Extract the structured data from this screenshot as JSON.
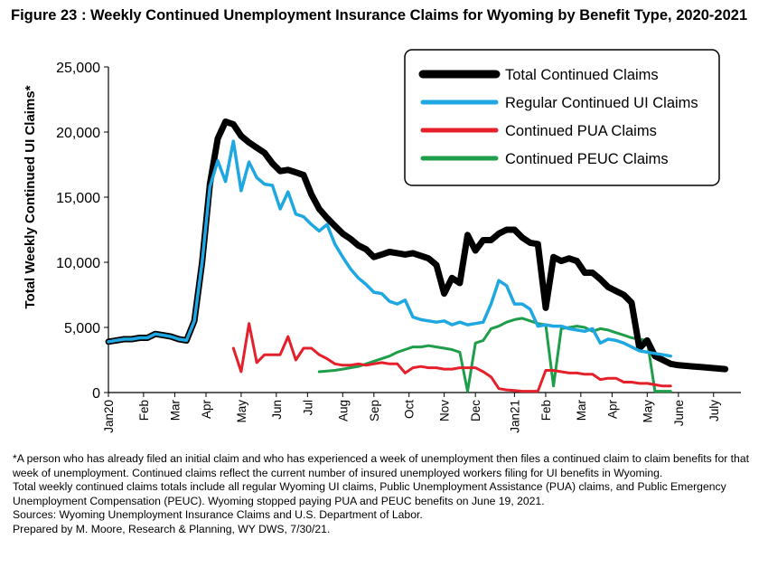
{
  "figure_title": "Figure 23 : Weekly Continued Unemployment Insurance Claims for Wyoming by Benefit Type, 2020-2021",
  "footnotes": [
    "*A person who has already filed an initial claim and who has experienced a week of unemployment then files a continued claim to claim benefits for that week of unemployment. Continued claims reflect the current number of insured unemployed workers filing for UI benefits in Wyoming.",
    "Total weekly continued claims totals include all regular Wyoming UI claims, Public Unemployment Assistance (PUA) claims, and Public Emergency Unemployment Compensation (PEUC). Wyoming stopped paying PUA and PEUC benefits on June 19, 2021.",
    "Sources: Wyoming Unemployment Insurance Claims and U.S. Department of Labor.",
    "Prepared by M. Moore, Research & Planning, WY DWS, 7/30/21."
  ],
  "chart_data": {
    "type": "line",
    "title": "Figure 23 : Weekly Continued Unemployment Insurance Claims for Wyoming by Benefit Type, 2020-2021",
    "xlabel": "",
    "ylabel": "Total Weekly Continued UI Claims*",
    "ylim": [
      0,
      25000
    ],
    "yticks": [
      0,
      5000,
      10000,
      15000,
      20000,
      25000
    ],
    "ytick_labels": [
      "0",
      "5,000",
      "10,000",
      "15,000",
      "20,000",
      "25,000"
    ],
    "x_start_label": "week 1 = first week of Jan 2020",
    "xlim_weeks": [
      1,
      82
    ],
    "xticks": [
      {
        "label": "Jan20",
        "week": 1
      },
      {
        "label": "Feb",
        "week": 5.5
      },
      {
        "label": "Mar",
        "week": 9.5
      },
      {
        "label": "Apr",
        "week": 13.5
      },
      {
        "label": "May",
        "week": 18
      },
      {
        "label": "Jun",
        "week": 22.5
      },
      {
        "label": "Jul",
        "week": 26.5
      },
      {
        "label": "Aug",
        "week": 31
      },
      {
        "label": "Sep",
        "week": 35
      },
      {
        "label": "Oct",
        "week": 39.5
      },
      {
        "label": "Nov",
        "week": 44
      },
      {
        "label": "Dec",
        "week": 48
      },
      {
        "label": "Jan21",
        "week": 53
      },
      {
        "label": "Feb",
        "week": 57
      },
      {
        "label": "Mar",
        "week": 61.5
      },
      {
        "label": "Apr",
        "week": 65.5
      },
      {
        "label": "May",
        "week": 70
      },
      {
        "label": "June",
        "week": 74
      },
      {
        "label": "July",
        "week": 78.5
      }
    ],
    "grid": false,
    "legend_position": "top-right",
    "series": [
      {
        "name": "Total Continued Claims",
        "color": "#000000",
        "width": 7,
        "x": [
          1,
          2,
          3,
          4,
          5,
          6,
          7,
          8,
          9,
          10,
          11,
          12,
          13,
          14,
          15,
          16,
          17,
          18,
          19,
          20,
          21,
          22,
          23,
          24,
          25,
          26,
          27,
          28,
          29,
          30,
          31,
          32,
          33,
          34,
          35,
          36,
          37,
          38,
          39,
          40,
          41,
          42,
          43,
          44,
          45,
          46,
          47,
          48,
          49,
          50,
          51,
          52,
          53,
          54,
          55,
          56,
          57,
          58,
          59,
          60,
          61,
          62,
          63,
          64,
          65,
          66,
          67,
          68,
          69,
          70,
          71,
          72,
          73,
          74,
          75,
          76,
          77,
          78,
          79,
          80
        ],
        "y": [
          3900,
          4000,
          4100,
          4100,
          4200,
          4200,
          4500,
          4400,
          4300,
          4100,
          4000,
          5500,
          10000,
          16000,
          19500,
          20800,
          20600,
          19700,
          19200,
          18800,
          18400,
          17600,
          17000,
          17100,
          16900,
          16700,
          15200,
          14100,
          13400,
          12800,
          12200,
          11800,
          11300,
          11000,
          10400,
          10600,
          10800,
          10700,
          10600,
          10700,
          10500,
          10300,
          9800,
          7600,
          8800,
          8400,
          12100,
          10900,
          11700,
          11700,
          12200,
          12500,
          12500,
          11900,
          11500,
          11400,
          6500,
          10400,
          10100,
          10300,
          10100,
          9200,
          9200,
          8700,
          8100,
          7800,
          7500,
          6900,
          3400,
          4000,
          2800,
          2500,
          2200,
          2100,
          2050,
          2000,
          1950,
          1900,
          1850,
          1800
        ]
      },
      {
        "name": "Regular Continued UI Claims",
        "color": "#1ea7e1",
        "width": 3.5,
        "x": [
          1,
          2,
          3,
          4,
          5,
          6,
          7,
          8,
          9,
          10,
          11,
          12,
          13,
          14,
          15,
          16,
          17,
          18,
          19,
          20,
          21,
          22,
          23,
          24,
          25,
          26,
          27,
          28,
          29,
          30,
          31,
          32,
          33,
          34,
          35,
          36,
          37,
          38,
          39,
          40,
          41,
          42,
          43,
          44,
          45,
          46,
          47,
          48,
          49,
          50,
          51,
          52,
          53,
          54,
          55,
          56,
          57,
          58,
          59,
          60,
          61,
          62,
          63,
          64,
          65,
          66,
          67,
          68,
          69,
          70,
          71,
          72,
          73
        ],
        "y": [
          3900,
          4000,
          4100,
          4100,
          4200,
          4200,
          4500,
          4400,
          4300,
          4100,
          4000,
          5500,
          10000,
          15800,
          17800,
          16200,
          19300,
          15500,
          17700,
          16500,
          16000,
          15900,
          14100,
          15400,
          13700,
          13500,
          12900,
          12400,
          12900,
          11400,
          10400,
          9500,
          8800,
          8300,
          7700,
          7600,
          7000,
          6800,
          7100,
          5800,
          5600,
          5500,
          5400,
          5500,
          5200,
          5400,
          5200,
          5300,
          5400,
          6800,
          8600,
          8200,
          6800,
          6800,
          6400,
          5100,
          5200,
          5100,
          5100,
          4900,
          4800,
          4700,
          4900,
          3800,
          4100,
          4000,
          3800,
          3500,
          3200,
          3100,
          3000,
          2900,
          2800
        ]
      },
      {
        "name": "Continued PUA Claims",
        "color": "#e5202a",
        "width": 3,
        "x": [
          17,
          18,
          19,
          20,
          21,
          22,
          23,
          24,
          25,
          26,
          27,
          28,
          29,
          30,
          31,
          32,
          33,
          34,
          35,
          36,
          37,
          38,
          39,
          40,
          41,
          42,
          43,
          44,
          45,
          46,
          47,
          48,
          49,
          50,
          51,
          52,
          53,
          54,
          55,
          56,
          57,
          58,
          59,
          60,
          61,
          62,
          63,
          64,
          65,
          66,
          67,
          68,
          69,
          70,
          71,
          72,
          73
        ],
        "y": [
          3400,
          1600,
          5300,
          2300,
          2900,
          2900,
          2900,
          4300,
          2500,
          3400,
          3400,
          2900,
          2600,
          2200,
          2100,
          2100,
          2200,
          2100,
          2200,
          2300,
          2200,
          2200,
          1500,
          1900,
          2000,
          1900,
          1900,
          1800,
          1800,
          1900,
          1900,
          1900,
          1600,
          1200,
          300,
          200,
          150,
          100,
          100,
          100,
          1700,
          1700,
          1600,
          1500,
          1500,
          1400,
          1400,
          1000,
          1100,
          1100,
          800,
          800,
          700,
          700,
          600,
          500,
          500
        ]
      },
      {
        "name": "Continued PEUC Claims",
        "color": "#1e9e4a",
        "width": 3,
        "x": [
          28,
          29,
          30,
          31,
          32,
          33,
          34,
          35,
          36,
          37,
          38,
          39,
          40,
          41,
          42,
          43,
          44,
          45,
          46,
          47,
          48,
          49,
          50,
          51,
          52,
          53,
          54,
          55,
          56,
          57,
          58,
          59,
          60,
          61,
          62,
          63,
          64,
          65,
          66,
          67,
          68,
          69,
          70,
          71,
          72,
          73
        ],
        "y": [
          1600,
          1650,
          1700,
          1800,
          1900,
          2000,
          2200,
          2400,
          2600,
          2800,
          3100,
          3300,
          3500,
          3500,
          3600,
          3500,
          3400,
          3300,
          3100,
          100,
          3800,
          4000,
          4900,
          5100,
          5400,
          5600,
          5700,
          5500,
          5300,
          5200,
          500,
          4900,
          5000,
          5100,
          5000,
          4700,
          4900,
          4800,
          4600,
          4400,
          4200,
          4100,
          4000,
          100,
          100,
          100
        ]
      }
    ]
  }
}
